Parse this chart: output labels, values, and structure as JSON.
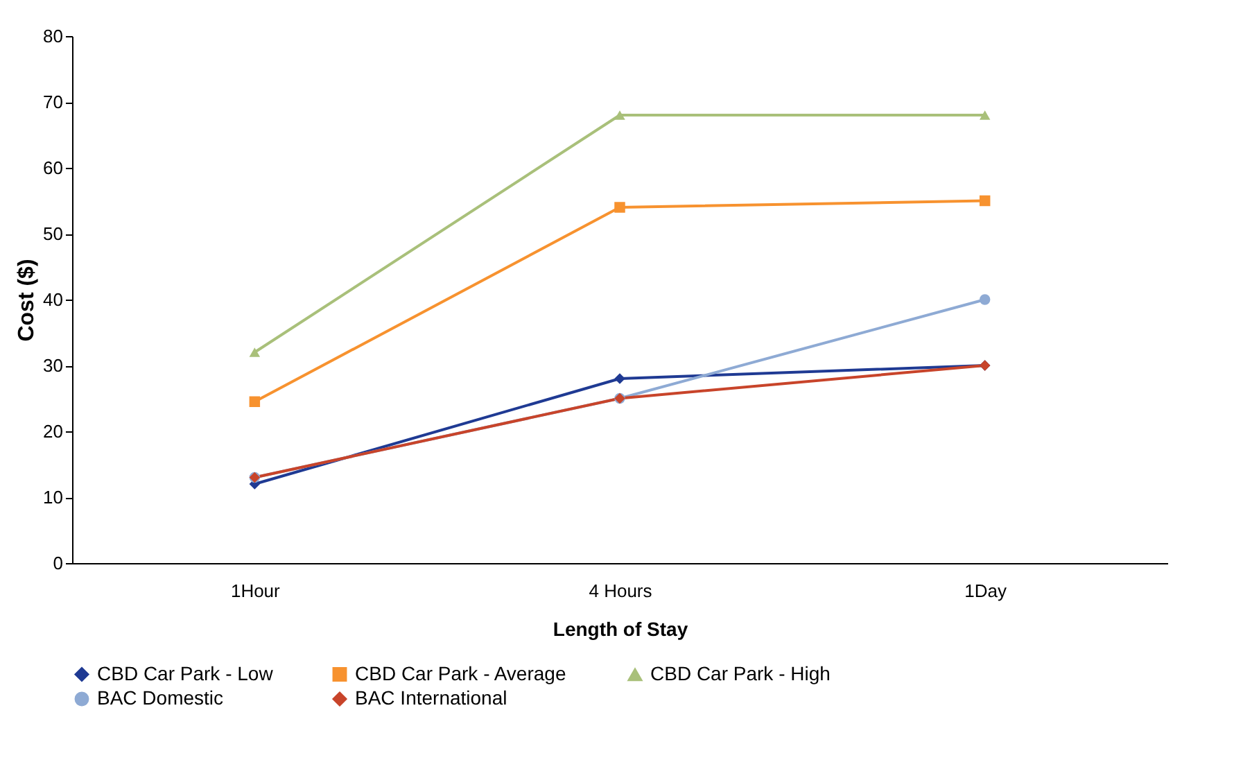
{
  "chart_data": {
    "type": "line",
    "xlabel": "Length of Stay",
    "ylabel": "Cost ($)",
    "categories": [
      "1Hour",
      "4 Hours",
      "1Day"
    ],
    "series": [
      {
        "name": "CBD Car Park - Low",
        "color": "#1f3a93",
        "marker": "diamond",
        "values": [
          12,
          28,
          30
        ]
      },
      {
        "name": "CBD Car Park - Average",
        "color": "#f7922f",
        "marker": "square",
        "values": [
          24.5,
          54,
          55
        ]
      },
      {
        "name": "CBD Car Park - High",
        "color": "#a9c07a",
        "marker": "triangle",
        "values": [
          32,
          68,
          68
        ]
      },
      {
        "name": "BAC Domestic",
        "color": "#8eaad4",
        "marker": "circle",
        "values": [
          13,
          25,
          40
        ]
      },
      {
        "name": "BAC International",
        "color": "#c8442a",
        "marker": "diamond",
        "values": [
          13,
          25,
          30
        ]
      }
    ],
    "ylim": [
      0,
      80
    ],
    "yticks": [
      0,
      10,
      20,
      30,
      40,
      50,
      60,
      70,
      80
    ],
    "grid": false,
    "legend": "bottom",
    "line_style": "solid"
  }
}
